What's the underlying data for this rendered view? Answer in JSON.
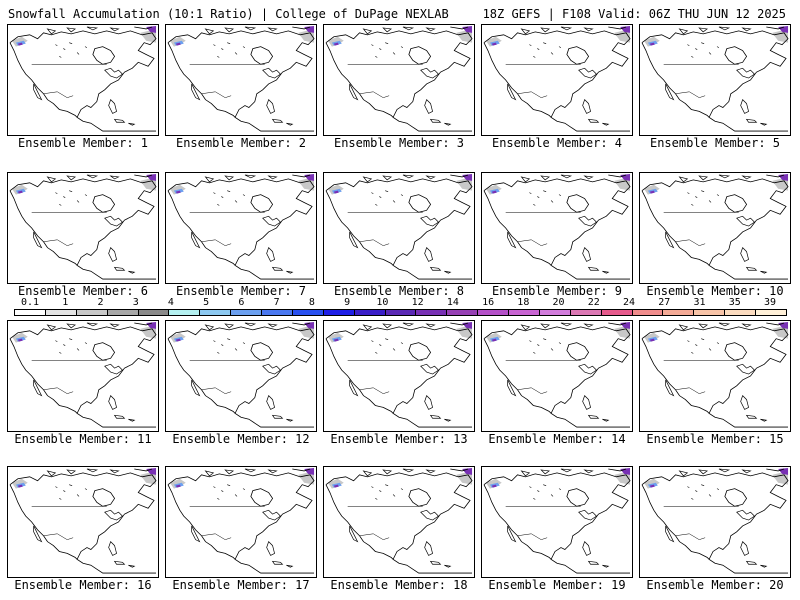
{
  "header": {
    "title_left": "Snowfall Accumulation (10:1 Ratio) | College of DuPage NEXLAB",
    "title_right": "18Z GEFS | F108 Valid: 06Z THU JUN 12 2025"
  },
  "panel_label_prefix": "Ensemble Member: ",
  "members": [
    1,
    2,
    3,
    4,
    5,
    6,
    7,
    8,
    9,
    10,
    11,
    12,
    13,
    14,
    15,
    16,
    17,
    18,
    19,
    20
  ],
  "colorbar": {
    "labels": [
      "0.1",
      "1",
      "2",
      "3",
      "4",
      "5",
      "6",
      "7",
      "8",
      "9",
      "10",
      "12",
      "14",
      "16",
      "18",
      "20",
      "22",
      "24",
      "27",
      "31",
      "35",
      "39"
    ],
    "colors": [
      "#ffffff",
      "#e4e4e4",
      "#c8c8c8",
      "#a8a8a8",
      "#8a8a8a",
      "#b4f0f0",
      "#8cc8f0",
      "#6ca0f0",
      "#4a78f0",
      "#2850f0",
      "#1e1ee6",
      "#3a1ec8",
      "#5a28b4",
      "#7830b4",
      "#9640b4",
      "#b450c8",
      "#c864d2",
      "#d27cdc",
      "#dc78b4",
      "#e65a8c",
      "#f08c8c",
      "#f4aa96",
      "#f8c4a8",
      "#fcdcc0",
      "#fff0d8"
    ]
  },
  "map_colors": {
    "coast": "#000000",
    "snow_light": "#c8c8c8",
    "snow_blue": "#6ca0f0",
    "snow_purple": "#7830b4"
  }
}
